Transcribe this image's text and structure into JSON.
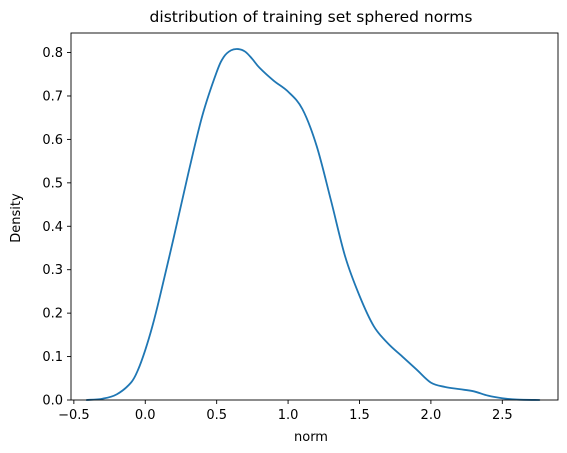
{
  "chart_data": {
    "type": "line",
    "title": "distribution of training set sphered norms",
    "xlabel": "norm",
    "ylabel": "Density",
    "xlim": [
      -0.52,
      2.89
    ],
    "ylim": [
      0,
      0.845
    ],
    "xticks": [
      -0.5,
      0.0,
      0.5,
      1.0,
      1.5,
      2.0,
      2.5
    ],
    "xtick_labels": [
      "−0.5",
      "0.0",
      "0.5",
      "1.0",
      "1.5",
      "2.0",
      "2.5"
    ],
    "yticks": [
      0.0,
      0.1,
      0.2,
      0.3,
      0.4,
      0.5,
      0.6,
      0.7,
      0.8
    ],
    "ytick_labels": [
      "0.0",
      "0.1",
      "0.2",
      "0.3",
      "0.4",
      "0.5",
      "0.6",
      "0.7",
      "0.8"
    ],
    "grid": false,
    "series": [
      {
        "color": "#1f77b4",
        "x": [
          -0.41,
          -0.3,
          -0.2,
          -0.1,
          -0.05,
          0.0,
          0.05,
          0.1,
          0.2,
          0.3,
          0.4,
          0.5,
          0.55,
          0.6,
          0.65,
          0.7,
          0.75,
          0.8,
          0.9,
          1.0,
          1.1,
          1.2,
          1.3,
          1.4,
          1.5,
          1.6,
          1.7,
          1.8,
          1.9,
          2.0,
          2.1,
          2.2,
          2.3,
          2.4,
          2.5,
          2.6,
          2.76
        ],
        "y": [
          0.0,
          0.003,
          0.013,
          0.04,
          0.07,
          0.115,
          0.17,
          0.235,
          0.375,
          0.52,
          0.655,
          0.755,
          0.79,
          0.805,
          0.808,
          0.802,
          0.785,
          0.765,
          0.735,
          0.71,
          0.67,
          0.585,
          0.46,
          0.33,
          0.24,
          0.17,
          0.13,
          0.1,
          0.07,
          0.04,
          0.03,
          0.025,
          0.02,
          0.01,
          0.004,
          0.001,
          0.0
        ]
      }
    ]
  }
}
